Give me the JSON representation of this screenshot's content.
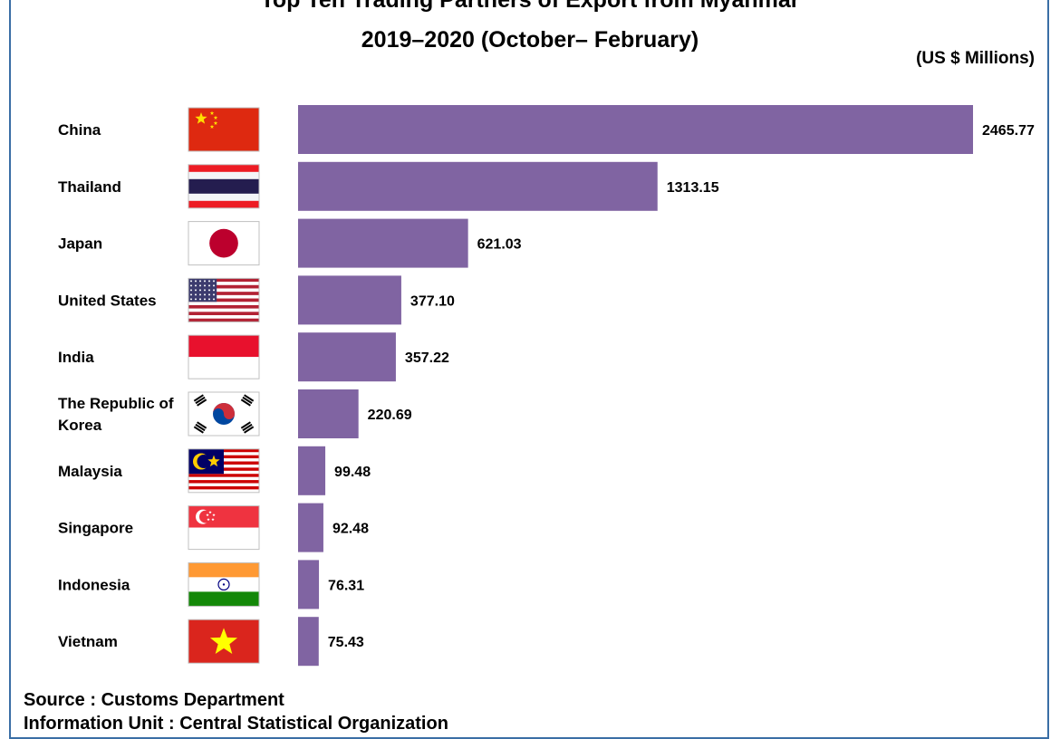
{
  "chart_data": {
    "type": "bar",
    "orientation": "horizontal",
    "title": "Top Ten Trading Partners of Export from Myanmar",
    "subtitle": "2019–2020 (October– February)",
    "unit_label": "(US $ Millions)",
    "categories": [
      "China",
      "Thailand",
      "Japan",
      "United States",
      "India",
      "The Republic of Korea",
      "Malaysia",
      "Singapore",
      "Indonesia",
      "Vietnam"
    ],
    "category_lines": [
      [
        "China"
      ],
      [
        "Thailand"
      ],
      [
        "Japan"
      ],
      [
        "United States"
      ],
      [
        "India"
      ],
      [
        "The Republic of",
        "Korea"
      ],
      [
        "Malaysia"
      ],
      [
        "Singapore"
      ],
      [
        "Indonesia"
      ],
      [
        "Vietnam"
      ]
    ],
    "values": [
      2465.77,
      1313.15,
      621.03,
      377.1,
      357.22,
      220.69,
      99.48,
      92.48,
      76.31,
      75.43
    ],
    "value_labels": [
      "2465.77",
      "1313.15",
      "621.03",
      "377.10",
      "357.22",
      "220.69",
      "99.48",
      "92.48",
      "76.31",
      "75.43"
    ],
    "flag_icons": [
      "china-flag-icon",
      "thailand-flag-icon",
      "japan-flag-icon",
      "united-states-flag-icon",
      "india-flag-icon",
      "korea-flag-icon",
      "malaysia-flag-icon",
      "singapore-flag-icon",
      "indonesia-flag-icon",
      "vietnam-flag-icon"
    ],
    "bar_color": "#8064a2",
    "xlim": [
      0,
      2465.77
    ],
    "grid": false,
    "legend": "none"
  },
  "source": {
    "line1": "Source : Customs Department",
    "line2": "Information Unit : Central Statistical Organization"
  },
  "colors": {
    "frame_border": "#3a6ea5"
  }
}
